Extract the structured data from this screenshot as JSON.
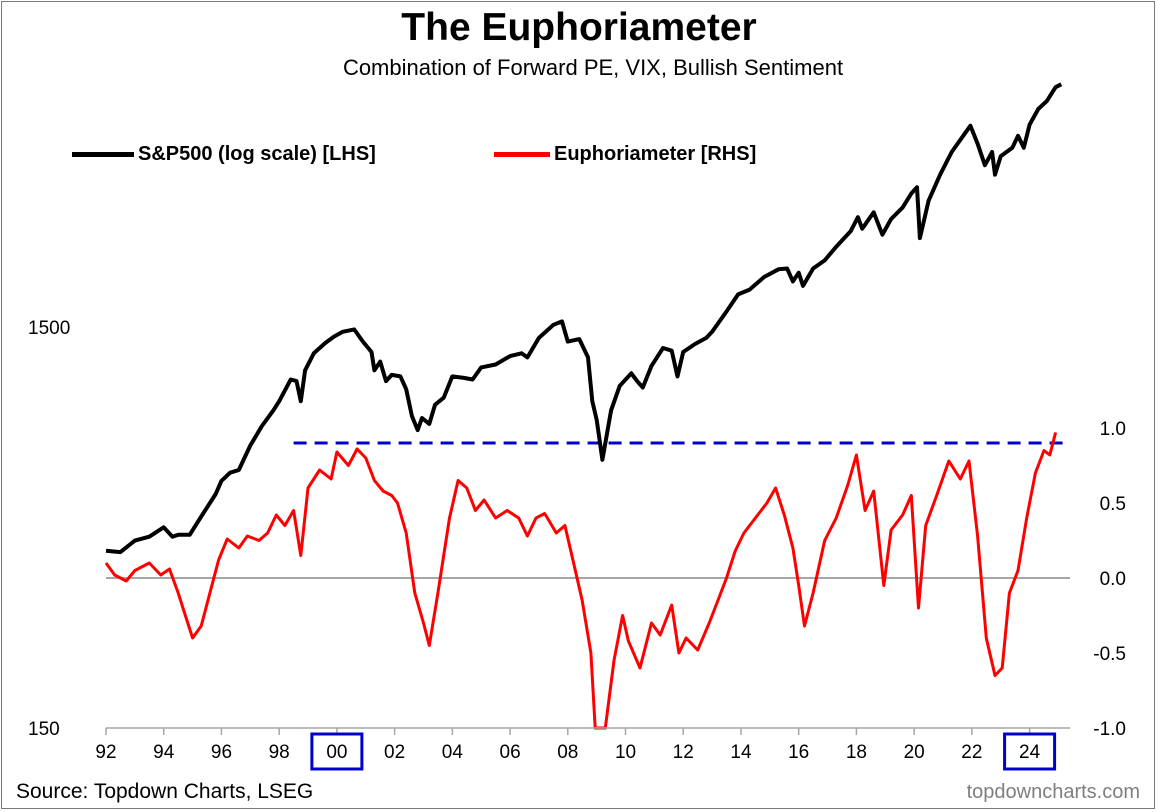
{
  "chart_data": {
    "type": "line",
    "title": "The Euphoriameter",
    "subtitle": "Combination of Forward PE, VIX, Bullish Sentiment",
    "source": "Source: Topdown Charts, LSEG",
    "credit": "topdowncharts.com",
    "colors": {
      "sp500": "#000000",
      "euphoria": "#ff0000",
      "threshold": "#0000cc",
      "zero": "#a6a6a6",
      "highlight": "#0000cc"
    },
    "x_axis": {
      "min": 1992.0,
      "max": 2025.4,
      "ticks": [
        1992,
        1994,
        1996,
        1998,
        2000,
        2002,
        2004,
        2006,
        2008,
        2010,
        2012,
        2014,
        2016,
        2018,
        2020,
        2022,
        2024
      ],
      "tick_labels": [
        "92",
        "94",
        "96",
        "98",
        "00",
        "02",
        "04",
        "06",
        "08",
        "10",
        "12",
        "14",
        "16",
        "18",
        "20",
        "22",
        "24"
      ],
      "highlighted_ticks": [
        2000,
        2024
      ]
    },
    "y_left": {
      "scale": "log",
      "min": 150,
      "max": 6200,
      "ticks": [
        150,
        1500
      ],
      "tick_labels": [
        "150",
        "1500"
      ]
    },
    "y_right": {
      "min": -1.0,
      "max": 1.0,
      "ticks": [
        1.0,
        0.5,
        0.0,
        -0.5,
        -1.0
      ],
      "tick_labels": [
        "1.0",
        "0.5",
        "0.0",
        "-0.5",
        "-1.0"
      ]
    },
    "threshold": {
      "value": 0.9,
      "x_start": 1998.5,
      "x_end": 2025.4
    },
    "series": [
      {
        "name": "S&P500 (log scale) [LHS]",
        "axis": "left",
        "points": [
          [
            1992.0,
            415
          ],
          [
            1992.5,
            412
          ],
          [
            1993.0,
            440
          ],
          [
            1993.5,
            450
          ],
          [
            1994.0,
            475
          ],
          [
            1994.3,
            450
          ],
          [
            1994.5,
            455
          ],
          [
            1994.9,
            455
          ],
          [
            1995.3,
            505
          ],
          [
            1995.8,
            575
          ],
          [
            1996.0,
            620
          ],
          [
            1996.3,
            650
          ],
          [
            1996.6,
            660
          ],
          [
            1997.0,
            760
          ],
          [
            1997.4,
            850
          ],
          [
            1997.8,
            930
          ],
          [
            1998.0,
            980
          ],
          [
            1998.4,
            1110
          ],
          [
            1998.6,
            1100
          ],
          [
            1998.75,
            980
          ],
          [
            1998.9,
            1170
          ],
          [
            1999.2,
            1290
          ],
          [
            1999.6,
            1370
          ],
          [
            1999.9,
            1420
          ],
          [
            2000.2,
            1460
          ],
          [
            2000.6,
            1480
          ],
          [
            2000.9,
            1380
          ],
          [
            2001.2,
            1300
          ],
          [
            2001.3,
            1170
          ],
          [
            2001.5,
            1230
          ],
          [
            2001.7,
            1100
          ],
          [
            2001.9,
            1140
          ],
          [
            2002.2,
            1130
          ],
          [
            2002.4,
            1050
          ],
          [
            2002.6,
            900
          ],
          [
            2002.8,
            830
          ],
          [
            2002.95,
            890
          ],
          [
            2003.2,
            860
          ],
          [
            2003.4,
            960
          ],
          [
            2003.7,
            1000
          ],
          [
            2004.0,
            1130
          ],
          [
            2004.4,
            1120
          ],
          [
            2004.7,
            1110
          ],
          [
            2005.0,
            1190
          ],
          [
            2005.5,
            1210
          ],
          [
            2006.0,
            1270
          ],
          [
            2006.4,
            1290
          ],
          [
            2006.6,
            1260
          ],
          [
            2007.0,
            1410
          ],
          [
            2007.5,
            1520
          ],
          [
            2007.8,
            1550
          ],
          [
            2008.0,
            1380
          ],
          [
            2008.4,
            1400
          ],
          [
            2008.7,
            1260
          ],
          [
            2008.85,
            980
          ],
          [
            2009.0,
            880
          ],
          [
            2009.2,
            700
          ],
          [
            2009.5,
            930
          ],
          [
            2009.8,
            1070
          ],
          [
            2010.2,
            1150
          ],
          [
            2010.4,
            1100
          ],
          [
            2010.6,
            1060
          ],
          [
            2010.9,
            1200
          ],
          [
            2011.3,
            1330
          ],
          [
            2011.6,
            1310
          ],
          [
            2011.8,
            1130
          ],
          [
            2012.0,
            1300
          ],
          [
            2012.4,
            1360
          ],
          [
            2012.8,
            1410
          ],
          [
            2013.0,
            1460
          ],
          [
            2013.5,
            1640
          ],
          [
            2013.9,
            1810
          ],
          [
            2014.3,
            1860
          ],
          [
            2014.8,
            2000
          ],
          [
            2015.3,
            2090
          ],
          [
            2015.6,
            2100
          ],
          [
            2015.8,
            1950
          ],
          [
            2016.0,
            2050
          ],
          [
            2016.15,
            1900
          ],
          [
            2016.5,
            2100
          ],
          [
            2016.9,
            2200
          ],
          [
            2017.3,
            2380
          ],
          [
            2017.8,
            2600
          ],
          [
            2018.05,
            2820
          ],
          [
            2018.2,
            2640
          ],
          [
            2018.6,
            2900
          ],
          [
            2018.9,
            2550
          ],
          [
            2019.2,
            2790
          ],
          [
            2019.6,
            2980
          ],
          [
            2019.9,
            3230
          ],
          [
            2020.1,
            3350
          ],
          [
            2020.2,
            2500
          ],
          [
            2020.5,
            3100
          ],
          [
            2020.9,
            3600
          ],
          [
            2021.3,
            4100
          ],
          [
            2021.7,
            4500
          ],
          [
            2021.95,
            4770
          ],
          [
            2022.2,
            4300
          ],
          [
            2022.45,
            3800
          ],
          [
            2022.7,
            4100
          ],
          [
            2022.8,
            3600
          ],
          [
            2023.0,
            4000
          ],
          [
            2023.4,
            4200
          ],
          [
            2023.6,
            4500
          ],
          [
            2023.8,
            4200
          ],
          [
            2024.0,
            4800
          ],
          [
            2024.3,
            5250
          ],
          [
            2024.6,
            5500
          ],
          [
            2024.9,
            5950
          ],
          [
            2025.1,
            6050
          ]
        ]
      },
      {
        "name": "Euphoriameter [RHS]",
        "axis": "right",
        "points": [
          [
            1992.0,
            0.1
          ],
          [
            1992.3,
            0.02
          ],
          [
            1992.7,
            -0.02
          ],
          [
            1993.0,
            0.05
          ],
          [
            1993.5,
            0.1
          ],
          [
            1993.9,
            0.02
          ],
          [
            1994.2,
            0.06
          ],
          [
            1994.5,
            -0.1
          ],
          [
            1994.8,
            -0.28
          ],
          [
            1995.0,
            -0.4
          ],
          [
            1995.3,
            -0.32
          ],
          [
            1995.6,
            -0.1
          ],
          [
            1995.9,
            0.12
          ],
          [
            1996.2,
            0.26
          ],
          [
            1996.6,
            0.2
          ],
          [
            1996.9,
            0.28
          ],
          [
            1997.3,
            0.25
          ],
          [
            1997.6,
            0.3
          ],
          [
            1997.9,
            0.42
          ],
          [
            1998.2,
            0.35
          ],
          [
            1998.5,
            0.45
          ],
          [
            1998.75,
            0.15
          ],
          [
            1999.0,
            0.6
          ],
          [
            1999.4,
            0.72
          ],
          [
            1999.8,
            0.66
          ],
          [
            2000.0,
            0.84
          ],
          [
            2000.4,
            0.75
          ],
          [
            2000.7,
            0.86
          ],
          [
            2001.0,
            0.8
          ],
          [
            2001.3,
            0.65
          ],
          [
            2001.6,
            0.58
          ],
          [
            2001.9,
            0.55
          ],
          [
            2002.1,
            0.5
          ],
          [
            2002.4,
            0.3
          ],
          [
            2002.7,
            -0.1
          ],
          [
            2003.0,
            -0.3
          ],
          [
            2003.2,
            -0.45
          ],
          [
            2003.5,
            -0.1
          ],
          [
            2003.9,
            0.4
          ],
          [
            2004.2,
            0.65
          ],
          [
            2004.5,
            0.6
          ],
          [
            2004.8,
            0.45
          ],
          [
            2005.1,
            0.52
          ],
          [
            2005.5,
            0.4
          ],
          [
            2005.9,
            0.45
          ],
          [
            2006.3,
            0.4
          ],
          [
            2006.6,
            0.28
          ],
          [
            2006.9,
            0.4
          ],
          [
            2007.2,
            0.43
          ],
          [
            2007.6,
            0.3
          ],
          [
            2007.9,
            0.35
          ],
          [
            2008.2,
            0.1
          ],
          [
            2008.5,
            -0.15
          ],
          [
            2008.8,
            -0.5
          ],
          [
            2008.95,
            -1.0
          ],
          [
            2009.3,
            -1.0
          ],
          [
            2009.6,
            -0.55
          ],
          [
            2009.9,
            -0.25
          ],
          [
            2010.1,
            -0.42
          ],
          [
            2010.5,
            -0.6
          ],
          [
            2010.9,
            -0.3
          ],
          [
            2011.2,
            -0.38
          ],
          [
            2011.6,
            -0.18
          ],
          [
            2011.85,
            -0.5
          ],
          [
            2012.1,
            -0.4
          ],
          [
            2012.5,
            -0.48
          ],
          [
            2012.9,
            -0.3
          ],
          [
            2013.2,
            -0.15
          ],
          [
            2013.5,
            0.0
          ],
          [
            2013.8,
            0.18
          ],
          [
            2014.1,
            0.3
          ],
          [
            2014.5,
            0.4
          ],
          [
            2014.9,
            0.5
          ],
          [
            2015.2,
            0.6
          ],
          [
            2015.5,
            0.42
          ],
          [
            2015.8,
            0.2
          ],
          [
            2016.0,
            -0.05
          ],
          [
            2016.2,
            -0.32
          ],
          [
            2016.5,
            -0.1
          ],
          [
            2016.9,
            0.25
          ],
          [
            2017.3,
            0.4
          ],
          [
            2017.7,
            0.62
          ],
          [
            2018.0,
            0.82
          ],
          [
            2018.3,
            0.45
          ],
          [
            2018.6,
            0.58
          ],
          [
            2018.95,
            -0.05
          ],
          [
            2019.2,
            0.32
          ],
          [
            2019.6,
            0.42
          ],
          [
            2019.9,
            0.55
          ],
          [
            2020.15,
            -0.2
          ],
          [
            2020.4,
            0.35
          ],
          [
            2020.8,
            0.56
          ],
          [
            2021.2,
            0.78
          ],
          [
            2021.6,
            0.66
          ],
          [
            2021.9,
            0.78
          ],
          [
            2022.2,
            0.28
          ],
          [
            2022.5,
            -0.4
          ],
          [
            2022.8,
            -0.65
          ],
          [
            2023.05,
            -0.6
          ],
          [
            2023.3,
            -0.1
          ],
          [
            2023.6,
            0.05
          ],
          [
            2023.9,
            0.4
          ],
          [
            2024.2,
            0.7
          ],
          [
            2024.5,
            0.85
          ],
          [
            2024.7,
            0.82
          ],
          [
            2024.9,
            0.97
          ]
        ]
      }
    ]
  }
}
